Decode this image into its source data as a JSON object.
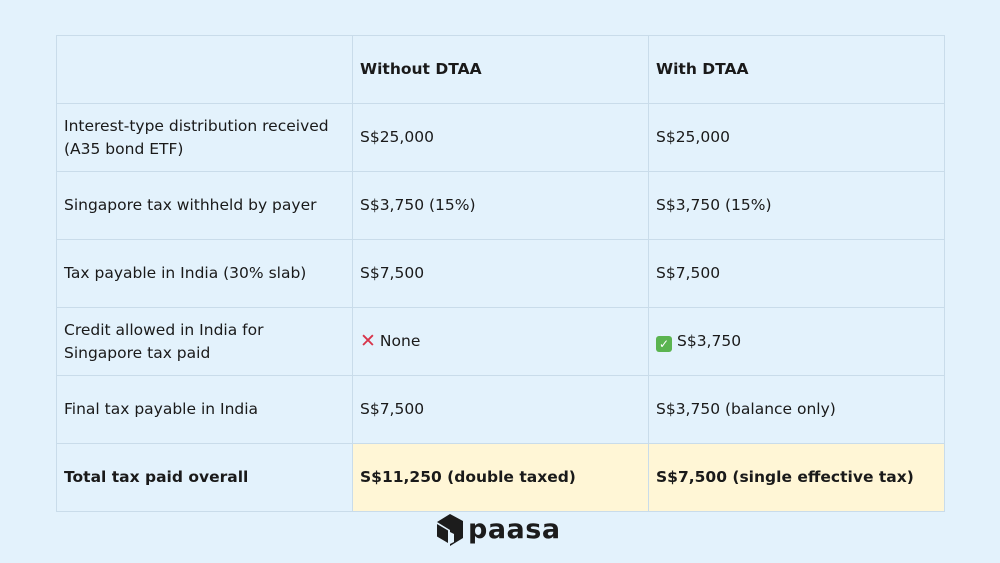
{
  "table": {
    "headers": [
      "",
      "Without DTAA",
      "With DTAA"
    ],
    "rows": [
      {
        "label": "Interest-type distribution received (A35 bond ETF)",
        "without": "S$25,000",
        "with": "S$25,000"
      },
      {
        "label": "Singapore tax withheld by payer",
        "without": "S$3,750 (15%)",
        "with": "S$3,750 (15%)"
      },
      {
        "label": "Tax payable in India (30% slab)",
        "without": "S$7,500",
        "with": "S$7,500"
      },
      {
        "label": "Credit allowed in India for Singapore tax paid",
        "without": "None",
        "with": "S$3,750",
        "without_icon": "cross-mark-icon",
        "with_icon": "check-mark-icon"
      },
      {
        "label": "Final tax payable in India",
        "without": "S$7,500",
        "with": "S$3,750 (balance only)"
      }
    ],
    "total": {
      "label": "Total tax paid overall",
      "without": "S$11,250 (double taxed)",
      "with": "S$7,500 (single effective tax)"
    }
  },
  "brand": {
    "name": "paasa"
  },
  "colors": {
    "background": "#e3f2fc",
    "highlight": "#fff6d6",
    "cross": "#d8344a",
    "check": "#5bb450"
  }
}
